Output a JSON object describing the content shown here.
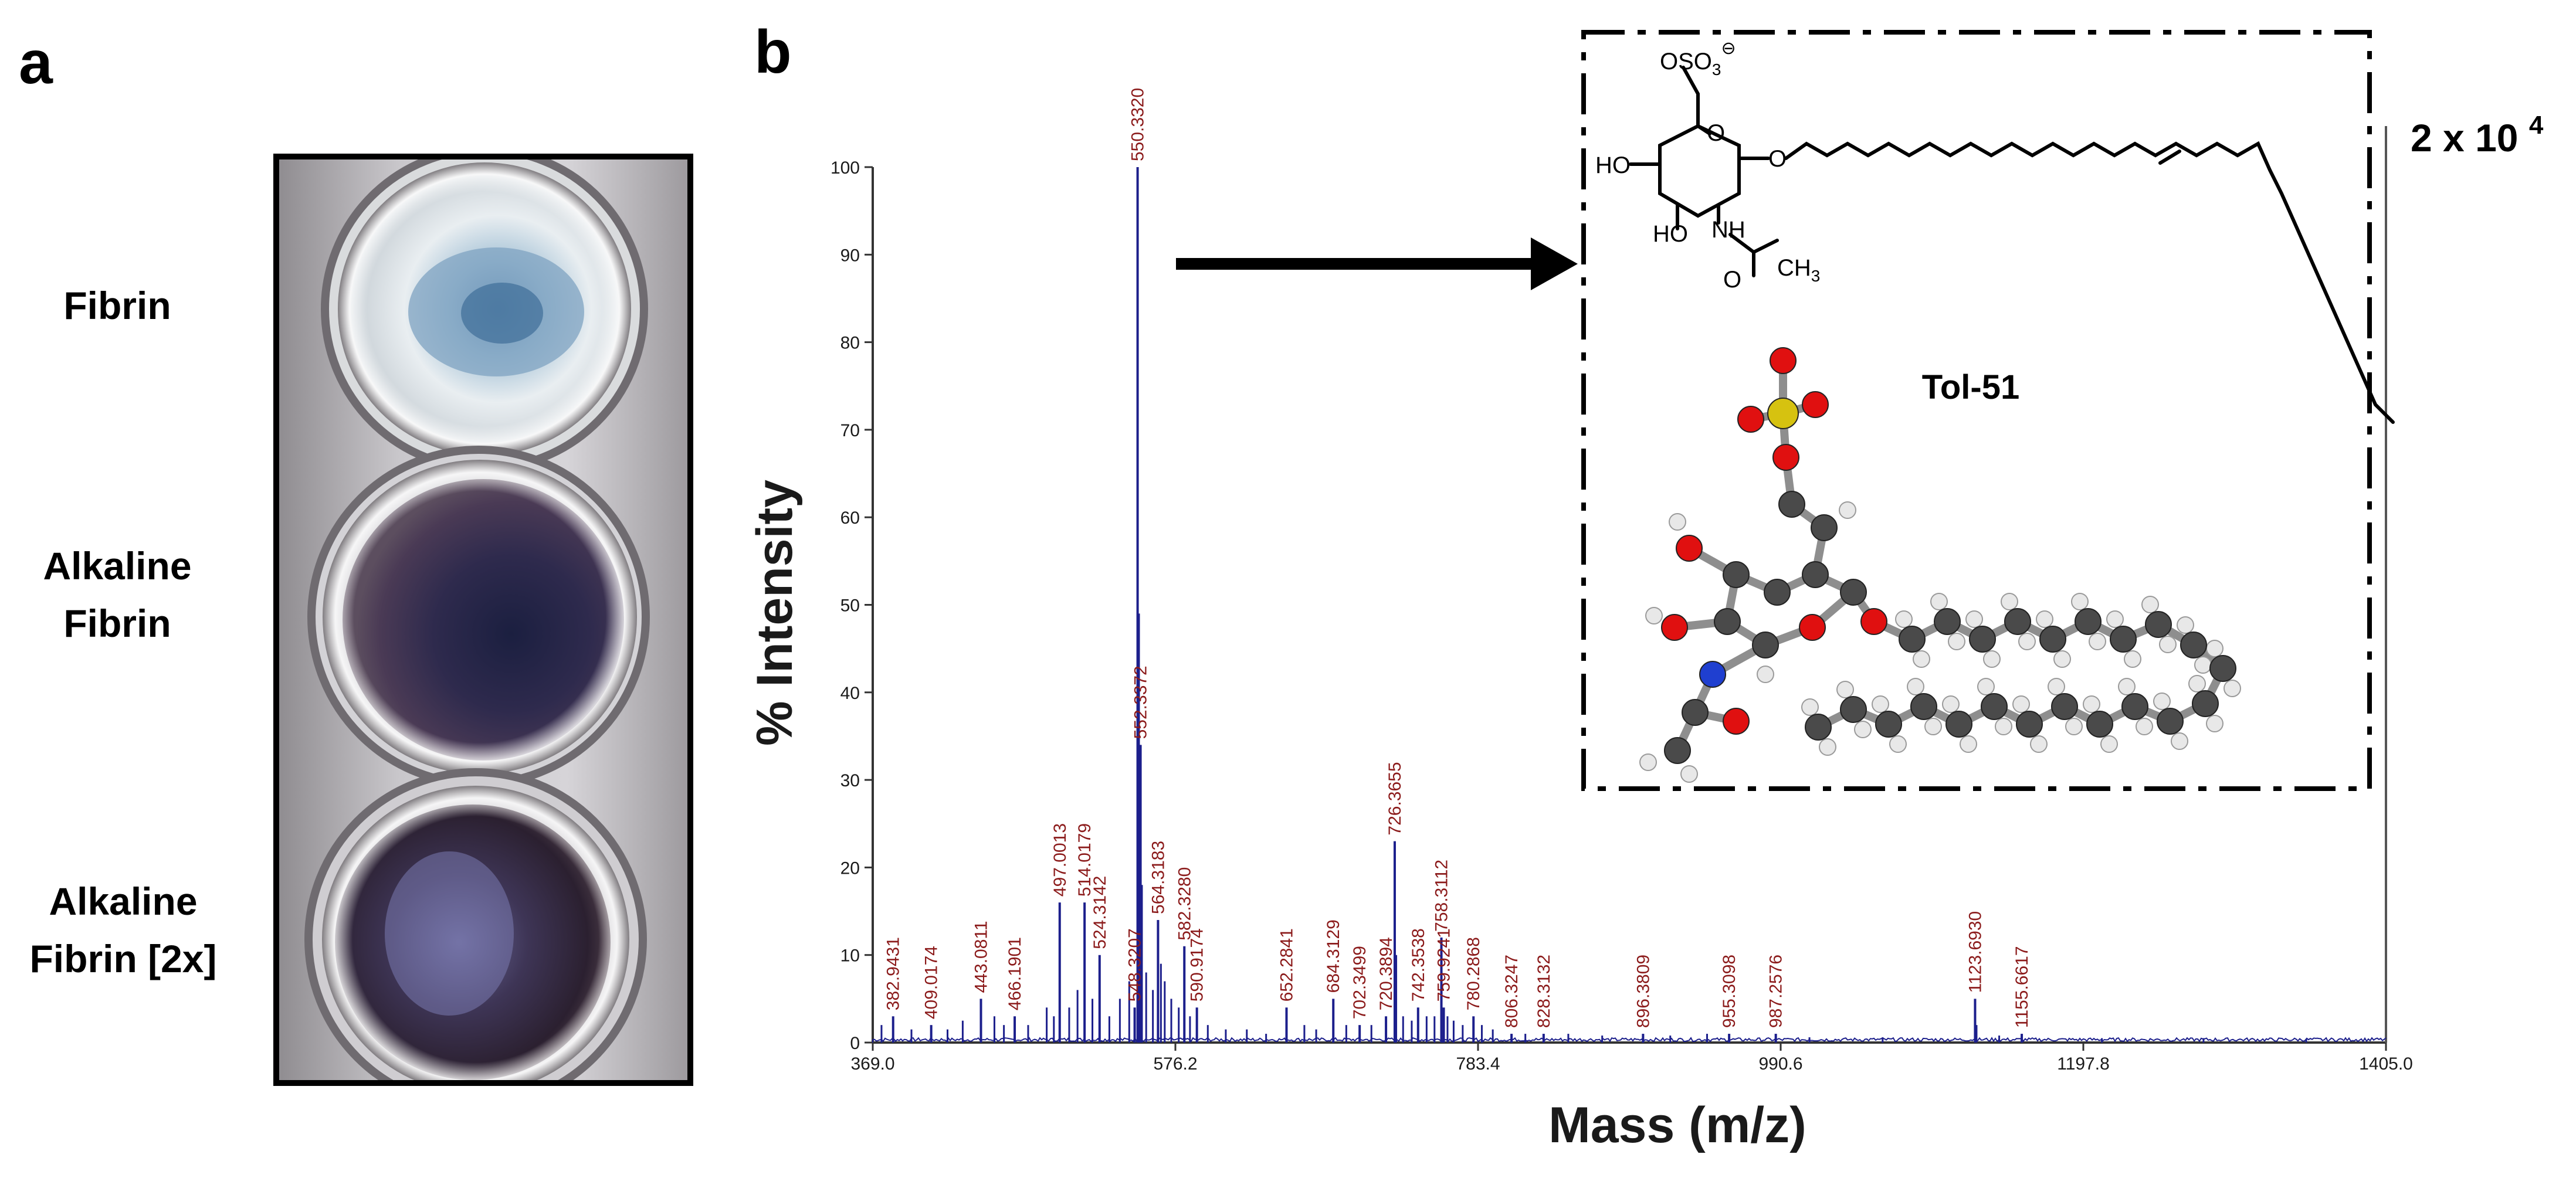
{
  "panel_a": {
    "letter": "a",
    "labels": [
      [
        "Fibrin"
      ],
      [
        "Alkaline",
        "Fibrin"
      ],
      [
        "Alkaline",
        "Fibrin [2x]"
      ]
    ]
  },
  "panel_b": {
    "letter": "b",
    "scale_label": "2 x 10",
    "scale_exponent": "4",
    "compound_name": "Tol-51",
    "structure_labels": {
      "osulfate": "OSO",
      "sub3": "3",
      "minus": "⊖",
      "ho1": "HO",
      "ho2": "HO",
      "nh": "NH",
      "o_carbonyl": "O",
      "ch3": "CH",
      "sub3b": "3",
      "o_ring": "O",
      "o_glyco": "O"
    }
  },
  "chart_data": {
    "type": "line",
    "xlabel": "Mass (m/z)",
    "ylabel": "% Intensity",
    "xlim": [
      369.0,
      1405.0
    ],
    "ylim": [
      0,
      100
    ],
    "x_ticks": [
      "369.0",
      "576.2",
      "783.4",
      "990.6",
      "1197.8",
      "1405.0"
    ],
    "x_tick_values": [
      369.0,
      576.2,
      783.4,
      990.6,
      1197.8,
      1405.0
    ],
    "y_ticks": [
      0,
      10,
      20,
      30,
      40,
      50,
      60,
      70,
      80,
      90,
      100
    ],
    "color": "#1c1f8c",
    "label_color": "#8b1a1a",
    "peaks": [
      {
        "mz": 382.9431,
        "intensity": 3,
        "label": "382.9431"
      },
      {
        "mz": 409.0174,
        "intensity": 2,
        "label": "409.0174"
      },
      {
        "mz": 443.0811,
        "intensity": 5,
        "label": "443.0811"
      },
      {
        "mz": 466.1901,
        "intensity": 3,
        "label": "466.1901"
      },
      {
        "mz": 497.0013,
        "intensity": 16,
        "label": "497.0013"
      },
      {
        "mz": 514.0179,
        "intensity": 16,
        "label": "514.0179"
      },
      {
        "mz": 524.3142,
        "intensity": 10,
        "label": "524.3142"
      },
      {
        "mz": 548.3207,
        "intensity": 4,
        "label": "548.3207"
      },
      {
        "mz": 550.332,
        "intensity": 100,
        "label": "550.3320"
      },
      {
        "mz": 552.3372,
        "intensity": 34,
        "label": "552.3372"
      },
      {
        "mz": 564.3183,
        "intensity": 14,
        "label": "564.3183"
      },
      {
        "mz": 582.328,
        "intensity": 11,
        "label": "582.3280"
      },
      {
        "mz": 590.9174,
        "intensity": 4,
        "label": "590.9174"
      },
      {
        "mz": 652.2841,
        "intensity": 4,
        "label": "652.2841"
      },
      {
        "mz": 684.3129,
        "intensity": 5,
        "label": "684.3129"
      },
      {
        "mz": 702.3499,
        "intensity": 2,
        "label": "702.3499"
      },
      {
        "mz": 720.3894,
        "intensity": 3,
        "label": "720.3894"
      },
      {
        "mz": 726.3655,
        "intensity": 23,
        "label": "726.3655"
      },
      {
        "mz": 742.3538,
        "intensity": 4,
        "label": "742.3538"
      },
      {
        "mz": 758.3112,
        "intensity": 12,
        "label": "758.3112"
      },
      {
        "mz": 759.9241,
        "intensity": 4,
        "label": "759.9241"
      },
      {
        "mz": 780.2868,
        "intensity": 3,
        "label": "780.2868"
      },
      {
        "mz": 806.3247,
        "intensity": 1,
        "label": "806.3247"
      },
      {
        "mz": 828.3132,
        "intensity": 1,
        "label": "828.3132"
      },
      {
        "mz": 896.3809,
        "intensity": 1,
        "label": "896.3809"
      },
      {
        "mz": 955.3098,
        "intensity": 1,
        "label": "955.3098"
      },
      {
        "mz": 987.2576,
        "intensity": 1,
        "label": "987.2576"
      },
      {
        "mz": 1123.693,
        "intensity": 5,
        "label": "1123.6930"
      },
      {
        "mz": 1155.6617,
        "intensity": 1,
        "label": "1155.6617"
      }
    ],
    "minor_peaks": [
      {
        "mz": 375.0,
        "intensity": 2
      },
      {
        "mz": 395.5,
        "intensity": 1.5
      },
      {
        "mz": 420.2,
        "intensity": 1.5
      },
      {
        "mz": 430.6,
        "intensity": 2.5
      },
      {
        "mz": 452.3,
        "intensity": 3
      },
      {
        "mz": 458.8,
        "intensity": 2
      },
      {
        "mz": 475.4,
        "intensity": 2
      },
      {
        "mz": 488.1,
        "intensity": 4
      },
      {
        "mz": 493.0,
        "intensity": 3
      },
      {
        "mz": 503.5,
        "intensity": 4
      },
      {
        "mz": 509.2,
        "intensity": 6
      },
      {
        "mz": 519.4,
        "intensity": 5
      },
      {
        "mz": 531.0,
        "intensity": 3
      },
      {
        "mz": 538.2,
        "intensity": 5
      },
      {
        "mz": 544.6,
        "intensity": 7
      },
      {
        "mz": 551.3,
        "intensity": 49
      },
      {
        "mz": 553.3,
        "intensity": 18
      },
      {
        "mz": 556.2,
        "intensity": 8
      },
      {
        "mz": 560.8,
        "intensity": 6
      },
      {
        "mz": 566.3,
        "intensity": 9
      },
      {
        "mz": 568.9,
        "intensity": 7
      },
      {
        "mz": 573.4,
        "intensity": 5
      },
      {
        "mz": 578.5,
        "intensity": 4
      },
      {
        "mz": 586.2,
        "intensity": 3
      },
      {
        "mz": 598.4,
        "intensity": 2
      },
      {
        "mz": 610.7,
        "intensity": 1.5
      },
      {
        "mz": 625.1,
        "intensity": 1.5
      },
      {
        "mz": 638.3,
        "intensity": 1
      },
      {
        "mz": 664.5,
        "intensity": 2
      },
      {
        "mz": 672.6,
        "intensity": 1.5
      },
      {
        "mz": 693.2,
        "intensity": 2
      },
      {
        "mz": 710.4,
        "intensity": 2
      },
      {
        "mz": 727.4,
        "intensity": 10
      },
      {
        "mz": 732.1,
        "intensity": 3
      },
      {
        "mz": 738.0,
        "intensity": 2.5
      },
      {
        "mz": 748.2,
        "intensity": 3
      },
      {
        "mz": 753.6,
        "intensity": 3
      },
      {
        "mz": 762.5,
        "intensity": 3
      },
      {
        "mz": 766.7,
        "intensity": 2.5
      },
      {
        "mz": 772.9,
        "intensity": 2
      },
      {
        "mz": 786.0,
        "intensity": 2
      },
      {
        "mz": 793.5,
        "intensity": 1.5
      },
      {
        "mz": 815.8,
        "intensity": 1
      },
      {
        "mz": 845.2,
        "intensity": 1
      },
      {
        "mz": 868.4,
        "intensity": 0.8
      },
      {
        "mz": 915.0,
        "intensity": 0.8
      },
      {
        "mz": 940.2,
        "intensity": 1
      },
      {
        "mz": 1010.3,
        "intensity": 0.6
      },
      {
        "mz": 1060.4,
        "intensity": 0.6
      },
      {
        "mz": 1124.7,
        "intensity": 2
      },
      {
        "mz": 1140.2,
        "intensity": 0.8
      },
      {
        "mz": 1210.5,
        "intensity": 0.5
      },
      {
        "mz": 1280.1,
        "intensity": 0.5
      },
      {
        "mz": 1350.4,
        "intensity": 0.4
      }
    ]
  }
}
